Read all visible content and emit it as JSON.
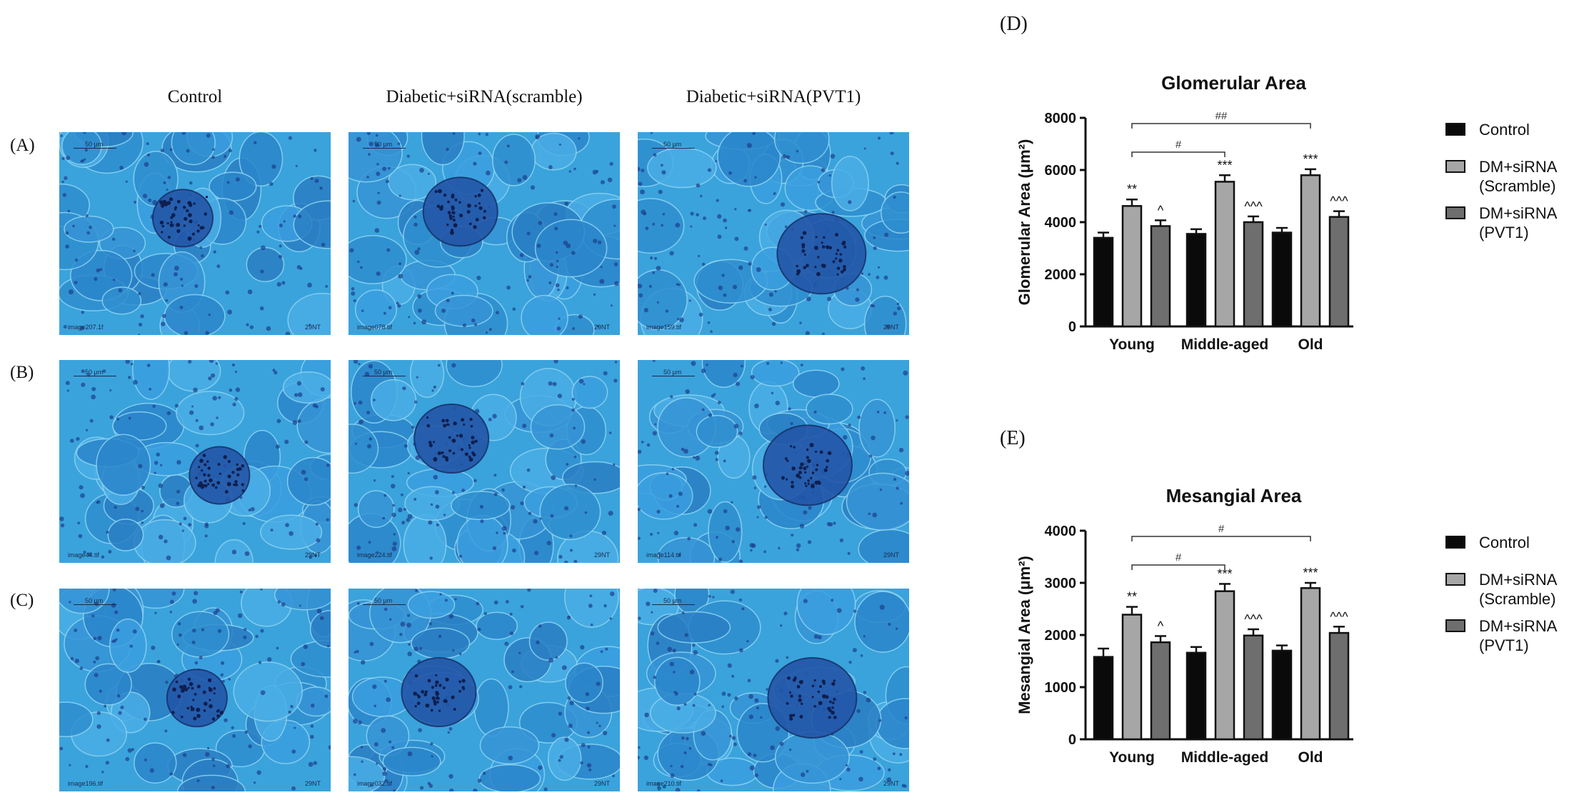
{
  "figure": {
    "columns": [
      "Control",
      "Diabetic+siRNA(scramble)",
      "Diabetic+siRNA(PVT1)"
    ],
    "rows": [
      "(A)",
      "(B)",
      "(C)"
    ],
    "panels": {
      "d": "(D)",
      "e": "(E)"
    },
    "micrographs": [
      [
        {
          "scale": "50 μm",
          "id_left": "image207.1f",
          "id_right": "29NT"
        },
        {
          "scale": "50 μm",
          "id_left": "image078.tif",
          "id_right": "29NT"
        },
        {
          "scale": "50 μm",
          "id_left": "image159.tif",
          "id_right": "29NT"
        }
      ],
      [
        {
          "scale": "50 μm",
          "id_left": "image44.tif",
          "id_right": "29NT"
        },
        {
          "scale": "50 μm",
          "id_left": "image224.tif",
          "id_right": "29NT"
        },
        {
          "scale": "50 μm",
          "id_left": "image114.tif",
          "id_right": "29NT"
        }
      ],
      [
        {
          "scale": "50 μm",
          "id_left": "image196.tif",
          "id_right": "29NT"
        },
        {
          "scale": "50 μm",
          "id_left": "image032.tif",
          "id_right": "29NT"
        },
        {
          "scale": "50 μm",
          "id_left": "image210.tif",
          "id_right": "29NT"
        }
      ]
    ]
  },
  "colors": {
    "control": "#0a0a0a",
    "scramble": "#a6a6a6",
    "pvt1": "#6e6e6e",
    "tissue": "#3aa3dc"
  },
  "chart_data": [
    {
      "type": "bar",
      "title": "Glomerular Area",
      "ylabel": "Glomerular Area (μm²)",
      "ylim": [
        0,
        8000
      ],
      "yticks": [
        0,
        2000,
        4000,
        6000,
        8000
      ],
      "categories": [
        "Young",
        "Middle-aged",
        "Old"
      ],
      "legend_position": "right",
      "series": [
        {
          "name": "Control",
          "values": [
            3400,
            3550,
            3600
          ],
          "errors": [
            200,
            180,
            180
          ],
          "sig": [
            "",
            "",
            ""
          ]
        },
        {
          "name": "DM+siRNA (Scramble)",
          "values": [
            4620,
            5550,
            5800
          ],
          "errors": [
            250,
            250,
            230
          ],
          "sig": [
            "**",
            "***",
            "***"
          ]
        },
        {
          "name": "DM+siRNA (PVT1)",
          "values": [
            3850,
            4000,
            4200
          ],
          "errors": [
            220,
            220,
            220
          ],
          "sig": [
            "^",
            "^^^",
            "^^^"
          ]
        }
      ],
      "brackets": [
        {
          "from": 0,
          "to": 1,
          "label": "#"
        },
        {
          "from": 0,
          "to": 2,
          "label": "##"
        }
      ]
    },
    {
      "type": "bar",
      "title": "Mesangial Area",
      "ylabel": "Mesangial Area (μm²)",
      "ylim": [
        0,
        4000
      ],
      "yticks": [
        0,
        1000,
        2000,
        3000,
        4000
      ],
      "categories": [
        "Young",
        "Middle-aged",
        "Old"
      ],
      "legend_position": "right",
      "series": [
        {
          "name": "Control",
          "values": [
            1580,
            1660,
            1700
          ],
          "errors": [
            160,
            110,
            100
          ],
          "sig": [
            "",
            "",
            ""
          ]
        },
        {
          "name": "DM+siRNA (Scramble)",
          "values": [
            2390,
            2840,
            2900
          ],
          "errors": [
            150,
            140,
            100
          ],
          "sig": [
            "**",
            "***",
            "***"
          ]
        },
        {
          "name": "DM+siRNA (PVT1)",
          "values": [
            1860,
            1990,
            2040
          ],
          "errors": [
            120,
            120,
            120
          ],
          "sig": [
            "^",
            "^^^",
            "^^^"
          ]
        }
      ],
      "brackets": [
        {
          "from": 0,
          "to": 1,
          "label": "#"
        },
        {
          "from": 0,
          "to": 2,
          "label": "#"
        }
      ]
    }
  ]
}
